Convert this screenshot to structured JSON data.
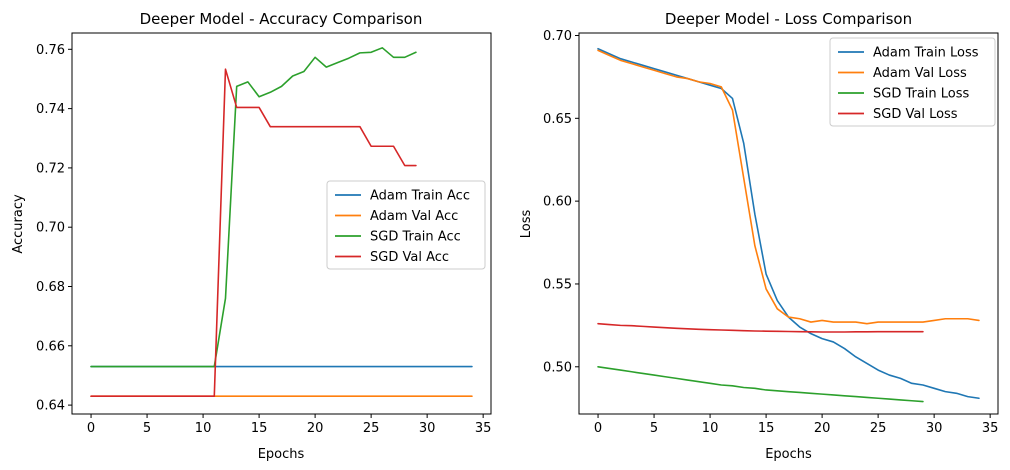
{
  "chart_data": [
    {
      "type": "line",
      "title": "Deeper Model - Accuracy Comparison",
      "xlabel": "Epochs",
      "ylabel": "Accuracy",
      "xlim": [
        -1.7,
        35.7
      ],
      "ylim": [
        0.637,
        0.7655
      ],
      "xticks": [
        0,
        5,
        10,
        15,
        20,
        25,
        30,
        35
      ],
      "yticks": [
        0.64,
        0.66,
        0.68,
        0.7,
        0.72,
        0.74,
        0.76
      ],
      "xtick_labels": [
        "0",
        "5",
        "10",
        "15",
        "20",
        "25",
        "30",
        "35"
      ],
      "ytick_labels": [
        "0.64",
        "0.66",
        "0.68",
        "0.70",
        "0.72",
        "0.74",
        "0.76"
      ],
      "legend_position": "center-right",
      "series": [
        {
          "name": "Adam Train Acc",
          "color": "#1f77b4",
          "x": [
            0,
            1,
            2,
            3,
            4,
            5,
            6,
            7,
            8,
            9,
            10,
            11,
            12,
            13,
            14,
            15,
            16,
            17,
            18,
            19,
            20,
            21,
            22,
            23,
            24,
            25,
            26,
            27,
            28,
            29,
            30,
            31,
            32,
            33,
            34
          ],
          "y": [
            0.653,
            0.653,
            0.653,
            0.653,
            0.653,
            0.653,
            0.653,
            0.653,
            0.653,
            0.653,
            0.653,
            0.653,
            0.653,
            0.653,
            0.653,
            0.653,
            0.653,
            0.653,
            0.653,
            0.653,
            0.653,
            0.653,
            0.653,
            0.653,
            0.653,
            0.653,
            0.653,
            0.653,
            0.653,
            0.653,
            0.653,
            0.653,
            0.653,
            0.653,
            0.653
          ]
        },
        {
          "name": "Adam Val Acc",
          "color": "#ff7f0e",
          "x": [
            0,
            1,
            2,
            3,
            4,
            5,
            6,
            7,
            8,
            9,
            10,
            11,
            12,
            13,
            14,
            15,
            16,
            17,
            18,
            19,
            20,
            21,
            22,
            23,
            24,
            25,
            26,
            27,
            28,
            29,
            30,
            31,
            32,
            33,
            34
          ],
          "y": [
            0.643,
            0.643,
            0.643,
            0.643,
            0.643,
            0.643,
            0.643,
            0.643,
            0.643,
            0.643,
            0.643,
            0.643,
            0.643,
            0.643,
            0.643,
            0.643,
            0.643,
            0.643,
            0.643,
            0.643,
            0.643,
            0.643,
            0.643,
            0.643,
            0.643,
            0.643,
            0.643,
            0.643,
            0.643,
            0.643,
            0.643,
            0.643,
            0.643,
            0.643,
            0.643
          ]
        },
        {
          "name": "SGD Train Acc",
          "color": "#2ca02c",
          "x": [
            0,
            1,
            2,
            3,
            4,
            5,
            6,
            7,
            8,
            9,
            10,
            11,
            12,
            13,
            14,
            15,
            16,
            17,
            18,
            19,
            20,
            21,
            22,
            23,
            24,
            25,
            26,
            27,
            28,
            29
          ],
          "y": [
            0.653,
            0.653,
            0.653,
            0.653,
            0.653,
            0.653,
            0.653,
            0.653,
            0.653,
            0.653,
            0.653,
            0.653,
            0.676,
            0.7475,
            0.749,
            0.744,
            0.7455,
            0.7475,
            0.751,
            0.7525,
            0.7573,
            0.754,
            0.7555,
            0.757,
            0.7588,
            0.759,
            0.7605,
            0.7573,
            0.7573,
            0.759
          ]
        },
        {
          "name": "SGD Val Acc",
          "color": "#d62728",
          "x": [
            0,
            1,
            2,
            3,
            4,
            5,
            6,
            7,
            8,
            9,
            10,
            11,
            12,
            13,
            14,
            15,
            16,
            17,
            18,
            19,
            20,
            21,
            22,
            23,
            24,
            25,
            26,
            27,
            28,
            29
          ],
          "y": [
            0.643,
            0.643,
            0.643,
            0.643,
            0.643,
            0.643,
            0.643,
            0.643,
            0.643,
            0.643,
            0.643,
            0.643,
            0.7533,
            0.7404,
            0.7404,
            0.7404,
            0.7339,
            0.7339,
            0.7339,
            0.7339,
            0.7339,
            0.7339,
            0.7339,
            0.7339,
            0.7339,
            0.7273,
            0.7273,
            0.7273,
            0.7208,
            0.7208
          ]
        }
      ]
    },
    {
      "type": "line",
      "title": "Deeper Model - Loss Comparison",
      "xlabel": "Epochs",
      "ylabel": "Loss",
      "xlim": [
        -1.7,
        35.7
      ],
      "ylim": [
        0.4715,
        0.7015
      ],
      "xticks": [
        0,
        5,
        10,
        15,
        20,
        25,
        30,
        35
      ],
      "yticks": [
        0.5,
        0.55,
        0.6,
        0.65,
        0.7
      ],
      "xtick_labels": [
        "0",
        "5",
        "10",
        "15",
        "20",
        "25",
        "30",
        "35"
      ],
      "ytick_labels": [
        "0.50",
        "0.55",
        "0.60",
        "0.65",
        "0.70"
      ],
      "legend_position": "top-right",
      "series": [
        {
          "name": "Adam Train Loss",
          "color": "#1f77b4",
          "x": [
            0,
            1,
            2,
            3,
            4,
            5,
            6,
            7,
            8,
            9,
            10,
            11,
            12,
            13,
            14,
            15,
            16,
            17,
            18,
            19,
            20,
            21,
            22,
            23,
            24,
            25,
            26,
            27,
            28,
            29,
            30,
            31,
            32,
            33,
            34
          ],
          "y": [
            0.692,
            0.689,
            0.686,
            0.684,
            0.682,
            0.68,
            0.678,
            0.676,
            0.674,
            0.672,
            0.67,
            0.668,
            0.662,
            0.635,
            0.592,
            0.556,
            0.54,
            0.53,
            0.524,
            0.52,
            0.517,
            0.515,
            0.511,
            0.506,
            0.502,
            0.498,
            0.495,
            0.493,
            0.49,
            0.489,
            0.487,
            0.485,
            0.484,
            0.482,
            0.481
          ]
        },
        {
          "name": "Adam Val Loss",
          "color": "#ff7f0e",
          "x": [
            0,
            1,
            2,
            3,
            4,
            5,
            6,
            7,
            8,
            9,
            10,
            11,
            12,
            13,
            14,
            15,
            16,
            17,
            18,
            19,
            20,
            21,
            22,
            23,
            24,
            25,
            26,
            27,
            28,
            29,
            30,
            31,
            32,
            33,
            34
          ],
          "y": [
            0.691,
            0.688,
            0.685,
            0.683,
            0.681,
            0.679,
            0.677,
            0.675,
            0.674,
            0.672,
            0.671,
            0.669,
            0.655,
            0.614,
            0.573,
            0.547,
            0.535,
            0.53,
            0.529,
            0.527,
            0.528,
            0.527,
            0.527,
            0.527,
            0.526,
            0.527,
            0.527,
            0.527,
            0.527,
            0.527,
            0.528,
            0.529,
            0.529,
            0.529,
            0.528
          ]
        },
        {
          "name": "SGD Train Loss",
          "color": "#2ca02c",
          "x": [
            0,
            1,
            2,
            3,
            4,
            5,
            6,
            7,
            8,
            9,
            10,
            11,
            12,
            13,
            14,
            15,
            16,
            17,
            18,
            19,
            20,
            21,
            22,
            23,
            24,
            25,
            26,
            27,
            28,
            29
          ],
          "y": [
            0.5,
            0.499,
            0.498,
            0.497,
            0.496,
            0.495,
            0.494,
            0.493,
            0.492,
            0.491,
            0.49,
            0.489,
            0.4885,
            0.4875,
            0.487,
            0.486,
            0.4855,
            0.485,
            0.4845,
            0.484,
            0.4835,
            0.483,
            0.4825,
            0.482,
            0.4815,
            0.481,
            0.4805,
            0.48,
            0.4795,
            0.479
          ]
        },
        {
          "name": "SGD Val Loss",
          "color": "#d62728",
          "x": [
            0,
            1,
            2,
            3,
            4,
            5,
            6,
            7,
            8,
            9,
            10,
            11,
            12,
            13,
            14,
            15,
            16,
            17,
            18,
            19,
            20,
            21,
            22,
            23,
            24,
            25,
            26,
            27,
            28,
            29
          ],
          "y": [
            0.526,
            0.5255,
            0.525,
            0.5248,
            0.5244,
            0.524,
            0.5236,
            0.5232,
            0.5229,
            0.5226,
            0.5224,
            0.5222,
            0.522,
            0.5218,
            0.5216,
            0.5215,
            0.5214,
            0.5213,
            0.5212,
            0.5211,
            0.521,
            0.521,
            0.521,
            0.5211,
            0.5211,
            0.5212,
            0.5212,
            0.5212,
            0.5212,
            0.5212
          ]
        }
      ]
    }
  ]
}
